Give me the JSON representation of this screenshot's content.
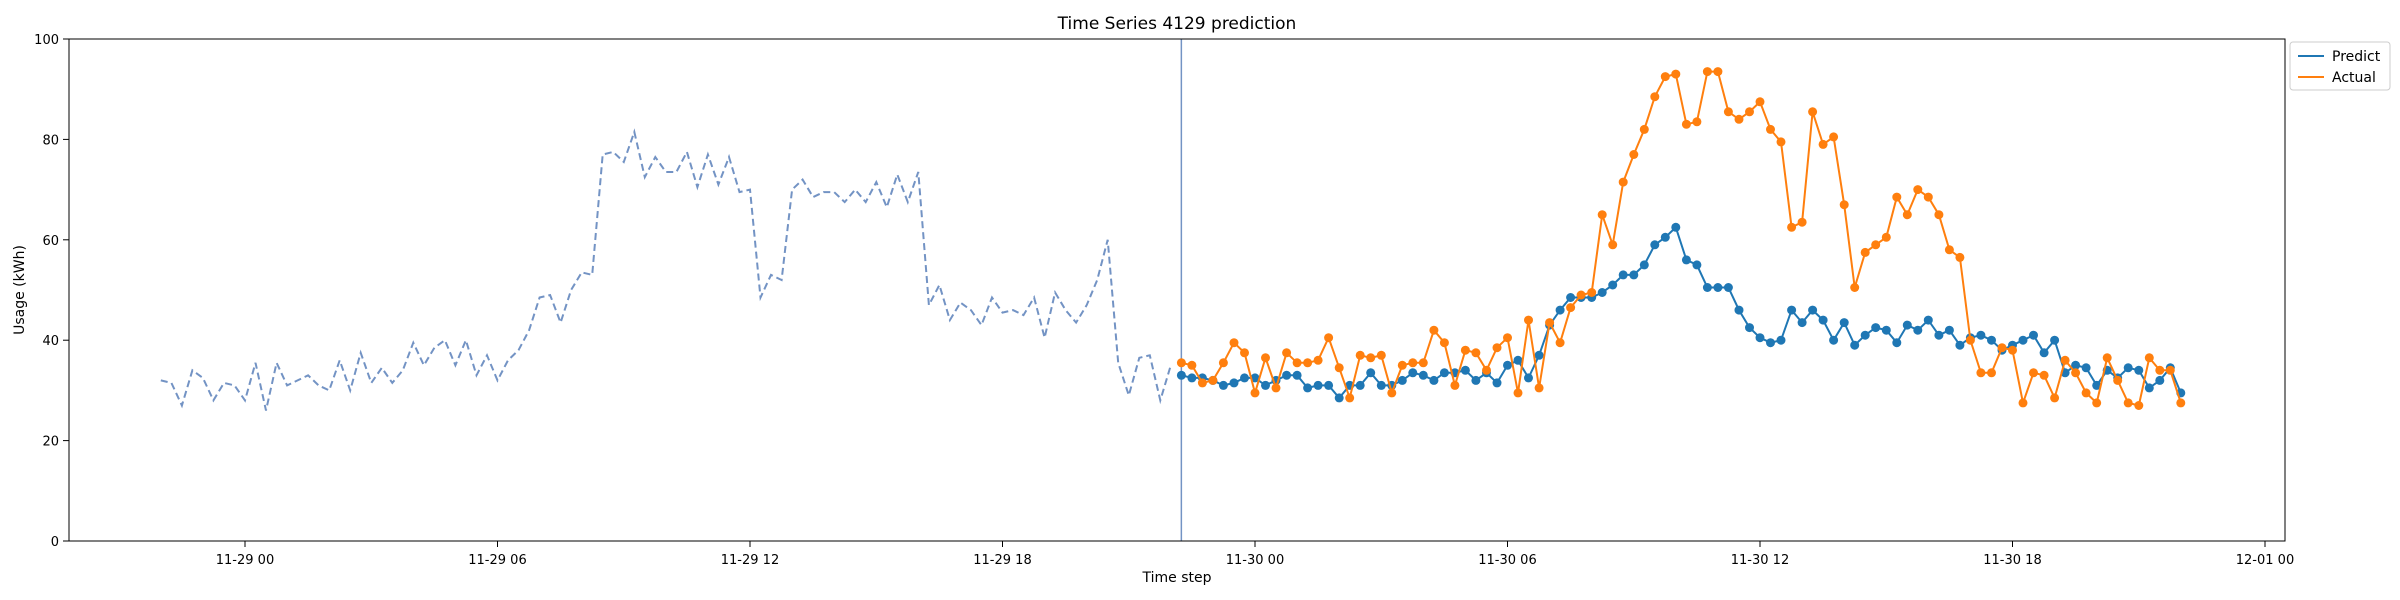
{
  "chart_data": {
    "type": "line",
    "title": "Time Series 4129 prediction",
    "xlabel": "Time step",
    "ylabel": "Usage (kWh)",
    "ylim": [
      0,
      100
    ],
    "y_ticks": [
      0,
      20,
      40,
      60,
      80,
      100
    ],
    "x_ticks": [
      "11-29 00",
      "11-29 06",
      "11-29 12",
      "11-29 18",
      "11-30 00",
      "11-30 06",
      "11-30 12",
      "11-30 18",
      "12-01 00"
    ],
    "grid": false,
    "legend_position": "upper right, outside plot",
    "legend": [
      {
        "name": "Predict",
        "color": "#1f77b4"
      },
      {
        "name": "Actual",
        "color": "#ff7f0e"
      }
    ],
    "history": {
      "color": "#7393c4",
      "style": "dashed",
      "start": "11-28 22:00",
      "step_minutes": 15,
      "values": [
        32,
        31.5,
        27,
        34,
        32.5,
        28,
        31.5,
        31,
        28,
        35.5,
        26,
        35.5,
        31,
        32,
        33,
        31,
        30,
        36,
        30,
        37.5,
        31.5,
        34.5,
        31.5,
        34,
        39.5,
        35,
        38.5,
        40,
        35,
        40,
        33,
        37,
        32,
        36,
        38,
        42,
        48.5,
        49,
        43.5,
        50,
        53.5,
        53,
        77,
        77.5,
        75.5,
        81.5,
        72.5,
        76.5,
        73.5,
        73.5,
        77.5,
        70.5,
        77,
        71,
        76.5,
        69.5,
        70,
        48.5,
        53,
        52,
        70,
        72,
        68.5,
        69.5,
        69.5,
        67.5,
        70,
        67.5,
        71.5,
        66.5,
        73,
        67.5,
        73.5,
        47,
        51,
        44,
        47.5,
        46,
        43,
        48.5,
        45.5,
        46,
        45,
        48.5,
        40.5,
        49.5,
        46,
        43.5,
        47,
        52,
        60,
        35.5,
        29,
        36.5,
        37,
        28,
        35
      ]
    },
    "forecast_start": "11-29 22:15",
    "series": [
      {
        "name": "Predict",
        "color": "#1f77b4",
        "start": "11-29 22:15",
        "step_minutes": 15,
        "values": [
          33,
          32.5,
          32.5,
          32,
          31,
          31.5,
          32.5,
          32.5,
          31,
          32,
          33,
          33,
          30.5,
          31,
          31,
          28.5,
          31,
          31,
          33.5,
          31,
          31,
          32,
          33.5,
          33,
          32,
          33.5,
          33.5,
          34,
          32,
          33.5,
          31.5,
          35,
          36,
          32.5,
          37,
          43,
          46,
          48.5,
          48.5,
          48.5,
          49.5,
          51,
          53,
          53,
          55,
          59,
          60.5,
          62.5,
          56,
          55,
          50.5,
          50.5,
          50.5,
          46,
          42.5,
          40.5,
          39.5,
          40,
          46,
          43.5,
          46,
          44,
          40,
          43.5,
          39,
          41,
          42.5,
          42,
          39.5,
          43,
          42,
          44,
          41,
          42,
          39,
          40.5,
          41,
          40,
          38,
          39,
          40,
          41,
          37.5,
          40,
          33.5,
          35,
          34.5,
          31,
          34,
          32.5,
          34.5,
          34,
          30.5,
          32,
          34.5,
          29.5
        ]
      },
      {
        "name": "Actual",
        "color": "#ff7f0e",
        "start": "11-29 22:15",
        "step_minutes": 15,
        "values": [
          35.5,
          35,
          31.5,
          32,
          35.5,
          39.5,
          37.5,
          29.5,
          36.5,
          30.5,
          37.5,
          35.5,
          35.5,
          36,
          40.5,
          34.5,
          28.5,
          37,
          36.5,
          37,
          29.5,
          35,
          35.5,
          35.5,
          42,
          39.5,
          31,
          38,
          37.5,
          34,
          38.5,
          40.5,
          29.5,
          44,
          30.5,
          43.5,
          39.5,
          46.5,
          49,
          49.5,
          65,
          59,
          71.5,
          77,
          82,
          88.5,
          92.5,
          93,
          83,
          83.5,
          93.5,
          93.5,
          85.5,
          84,
          85.5,
          87.5,
          82,
          79.5,
          62.5,
          63.5,
          85.5,
          79,
          80.5,
          67,
          50.5,
          57.5,
          59,
          60.5,
          68.5,
          65,
          70,
          68.5,
          65,
          58,
          56.5,
          40,
          33.5,
          33.5,
          38.5,
          38,
          27.5,
          33.5,
          33,
          28.5,
          36,
          33.5,
          29.5,
          27.5,
          36.5,
          32,
          27.5,
          27,
          36.5,
          34,
          34,
          27.5
        ]
      }
    ]
  }
}
